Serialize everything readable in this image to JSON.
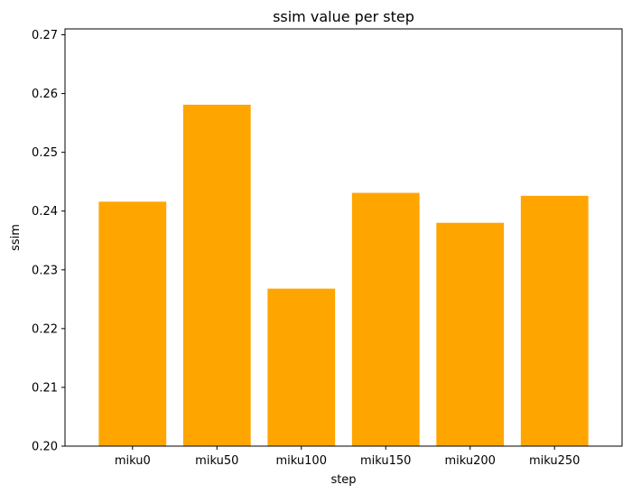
{
  "chart_data": {
    "type": "bar",
    "title": "ssim value per step",
    "xlabel": "step",
    "ylabel": "ssim",
    "categories": [
      "miku0",
      "miku50",
      "miku100",
      "miku150",
      "miku200",
      "miku250"
    ],
    "values": [
      0.2416,
      0.2581,
      0.2268,
      0.2431,
      0.238,
      0.2426
    ],
    "ylim": [
      0.2,
      0.271
    ],
    "yticks": [
      "0.20",
      "0.21",
      "0.22",
      "0.23",
      "0.24",
      "0.25",
      "0.26",
      "0.27"
    ],
    "bar_color": "#FFA500",
    "grid": false
  }
}
